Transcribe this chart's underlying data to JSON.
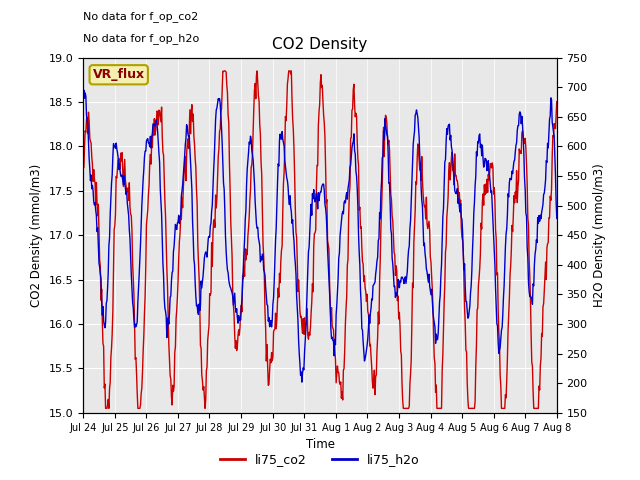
{
  "title": "CO2 Density",
  "xlabel": "Time",
  "ylabel_left": "CO2 Density (mmol/m3)",
  "ylabel_right": "H2O Density (mmol/m3)",
  "annotation_line1": "No data for f_op_co2",
  "annotation_line2": "No data for f_op_h2o",
  "legend_box_label": "VR_flux",
  "legend_box_facecolor": "#f5f0b0",
  "legend_box_edgecolor": "#b0a000",
  "legend_box_text_color": "#8b0000",
  "ylim_left": [
    15.0,
    19.0
  ],
  "ylim_right": [
    150,
    750
  ],
  "yticks_left": [
    15.0,
    15.5,
    16.0,
    16.5,
    17.0,
    17.5,
    18.0,
    18.5,
    19.0
  ],
  "yticks_right": [
    150,
    200,
    250,
    300,
    350,
    400,
    450,
    500,
    550,
    600,
    650,
    700,
    750
  ],
  "xtick_labels": [
    "Jul 24",
    "Jul 25",
    "Jul 26",
    "Jul 27",
    "Jul 28",
    "Jul 29",
    "Jul 30",
    "Jul 31",
    "Aug 1",
    "Aug 2",
    "Aug 3",
    "Aug 4",
    "Aug 5",
    "Aug 6",
    "Aug 7",
    "Aug 8"
  ],
  "color_co2": "#cc0000",
  "color_h2o": "#0000cc",
  "plot_bg_color": "#e8e8e8",
  "linewidth": 1.0,
  "n_points": 720,
  "legend_co2": "li75_co2",
  "legend_h2o": "li75_h2o"
}
